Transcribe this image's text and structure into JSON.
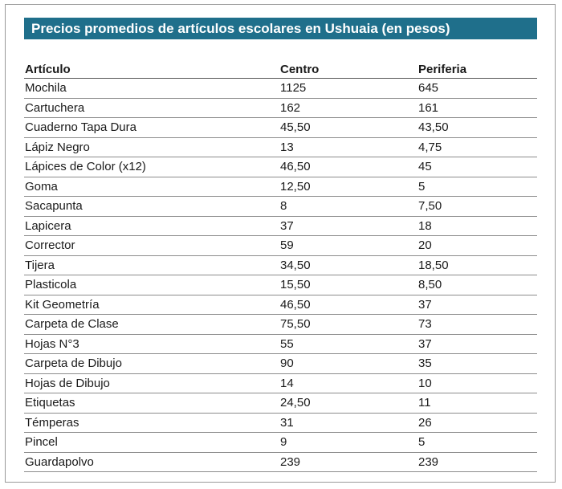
{
  "title": "Precios promedios de artículos escolares en Ushuaia (en pesos)",
  "colors": {
    "title_bg": "#1f6f8b",
    "title_text": "#ffffff",
    "rule": "#8c8c8c"
  },
  "table": {
    "headers": [
      "Artículo",
      "Centro",
      "Periferia"
    ],
    "rows": [
      [
        "Mochila",
        "1125",
        "645"
      ],
      [
        "Cartuchera",
        "162",
        "161"
      ],
      [
        "Cuaderno Tapa Dura",
        "45,50",
        "43,50"
      ],
      [
        "Lápiz Negro",
        "13",
        "4,75"
      ],
      [
        "Lápices de Color (x12)",
        "46,50",
        "45"
      ],
      [
        "Goma",
        "12,50",
        "5"
      ],
      [
        "Sacapunta",
        "8",
        "7,50"
      ],
      [
        "Lapicera",
        "37",
        "18"
      ],
      [
        "Corrector",
        "59",
        "20"
      ],
      [
        "Tijera",
        "34,50",
        "18,50"
      ],
      [
        "Plasticola",
        "15,50",
        "8,50"
      ],
      [
        "Kit Geometría",
        "46,50",
        "37"
      ],
      [
        "Carpeta de Clase",
        "75,50",
        "73"
      ],
      [
        "Hojas N°3",
        "55",
        "37"
      ],
      [
        "Carpeta de Dibujo",
        "90",
        "35"
      ],
      [
        "Hojas de Dibujo",
        "14",
        "10"
      ],
      [
        "Etiquetas",
        "24,50",
        "11"
      ],
      [
        "Témperas",
        "31",
        "26"
      ],
      [
        "Pincel",
        "9",
        "5"
      ],
      [
        "Guardapolvo",
        "239",
        "239"
      ]
    ]
  }
}
